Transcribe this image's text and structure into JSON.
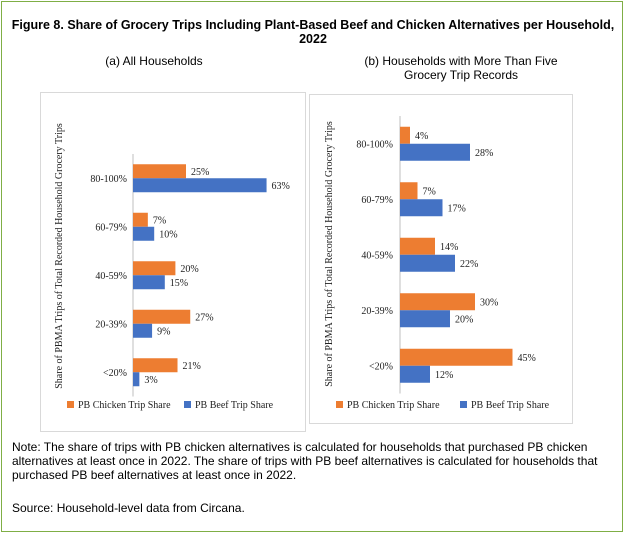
{
  "figure": {
    "title": "Figure 8. Share of Grocery Trips Including Plant-Based Beef and Chicken Alternatives per Household, 2022",
    "note": "Note: The share of trips with PB chicken alternatives is calculated for households that purchased PB chicken alternatives at least once in 2022. The share of trips with PB beef alternatives is calculated for households that purchased PB beef alternatives at least once in 2022.",
    "source": "Source: Household-level data from Circana."
  },
  "colors": {
    "chicken": "#ed7d31",
    "beef": "#4472c4"
  },
  "chart_data": [
    {
      "type": "bar",
      "orientation": "horizontal",
      "title": "(a) All Households",
      "ylabel": "Share of PBMA Trips of Total Recorded Household Grocery Trips",
      "categories": [
        "80-100%",
        "60-79%",
        "40-59%",
        "20-39%",
        "<20%"
      ],
      "series": [
        {
          "name": "PB Chicken Trip Share",
          "values": [
            25,
            7,
            20,
            27,
            21
          ],
          "labels": [
            "25%",
            "7%",
            "20%",
            "27%",
            "21%"
          ]
        },
        {
          "name": "PB Beef Trip Share",
          "values": [
            63,
            10,
            15,
            9,
            3
          ],
          "labels": [
            "63%",
            "10%",
            "15%",
            "9%",
            "3%"
          ]
        }
      ],
      "legend": "bottom",
      "grid": false
    },
    {
      "type": "bar",
      "orientation": "horizontal",
      "title": "(b) Households with More Than Five Grocery Trip Records",
      "title_lines": [
        "(b) Households with More Than Five",
        "Grocery Trip Records"
      ],
      "ylabel": "Share of PBMA Trips of Total Recorded Household Grocery Trips",
      "categories": [
        "80-100%",
        "60-79%",
        "40-59%",
        "20-39%",
        "<20%"
      ],
      "series": [
        {
          "name": "PB Chicken Trip Share",
          "values": [
            4,
            7,
            14,
            30,
            45
          ],
          "labels": [
            "4%",
            "7%",
            "14%",
            "30%",
            "45%"
          ]
        },
        {
          "name": "PB Beef Trip Share",
          "values": [
            28,
            17,
            22,
            20,
            12
          ],
          "labels": [
            "28%",
            "17%",
            "22%",
            "20%",
            "12%"
          ]
        }
      ],
      "legend": "bottom",
      "grid": false
    }
  ]
}
